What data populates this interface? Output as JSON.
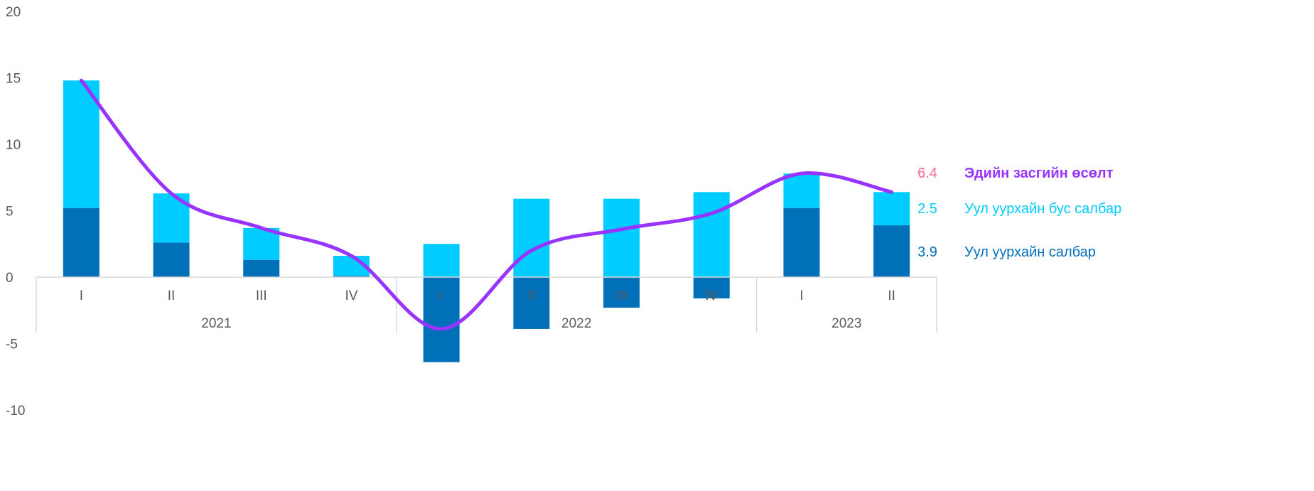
{
  "chart_data": {
    "type": "bar",
    "stacked": true,
    "categories": [
      "I",
      "II",
      "III",
      "IV",
      "I",
      "II",
      "III",
      "IV",
      "I",
      "II"
    ],
    "groups": [
      {
        "label": "2021",
        "start": 0,
        "end": 3
      },
      {
        "label": "2022",
        "start": 4,
        "end": 7
      },
      {
        "label": "2023",
        "start": 8,
        "end": 9
      }
    ],
    "ylim": [
      -10,
      20
    ],
    "yticks": [
      20,
      15,
      10,
      5,
      0,
      -5,
      -10
    ],
    "grid": false,
    "legend": "right",
    "series": [
      {
        "name": "Уул уурхайн салбар",
        "kind": "bar",
        "color": "#0070b8",
        "values": [
          5.2,
          2.6,
          1.3,
          0.1,
          -6.4,
          -3.9,
          -2.3,
          -1.6,
          5.2,
          3.9
        ],
        "last_label": "3.9"
      },
      {
        "name": "Уул уурхайн бус салбар",
        "kind": "bar",
        "color": "#00ccff",
        "values": [
          9.6,
          3.7,
          2.4,
          1.5,
          2.5,
          5.9,
          5.9,
          6.4,
          2.6,
          2.5
        ],
        "last_label": "2.5"
      },
      {
        "name": "Эдийн засгийн өсөлт",
        "kind": "line",
        "color": "#9933ff",
        "values": [
          14.8,
          6.3,
          3.7,
          1.6,
          -3.9,
          2.0,
          3.6,
          4.8,
          7.8,
          6.4
        ],
        "last_label": "6.4",
        "last_label_color": "#ff6699"
      }
    ]
  }
}
